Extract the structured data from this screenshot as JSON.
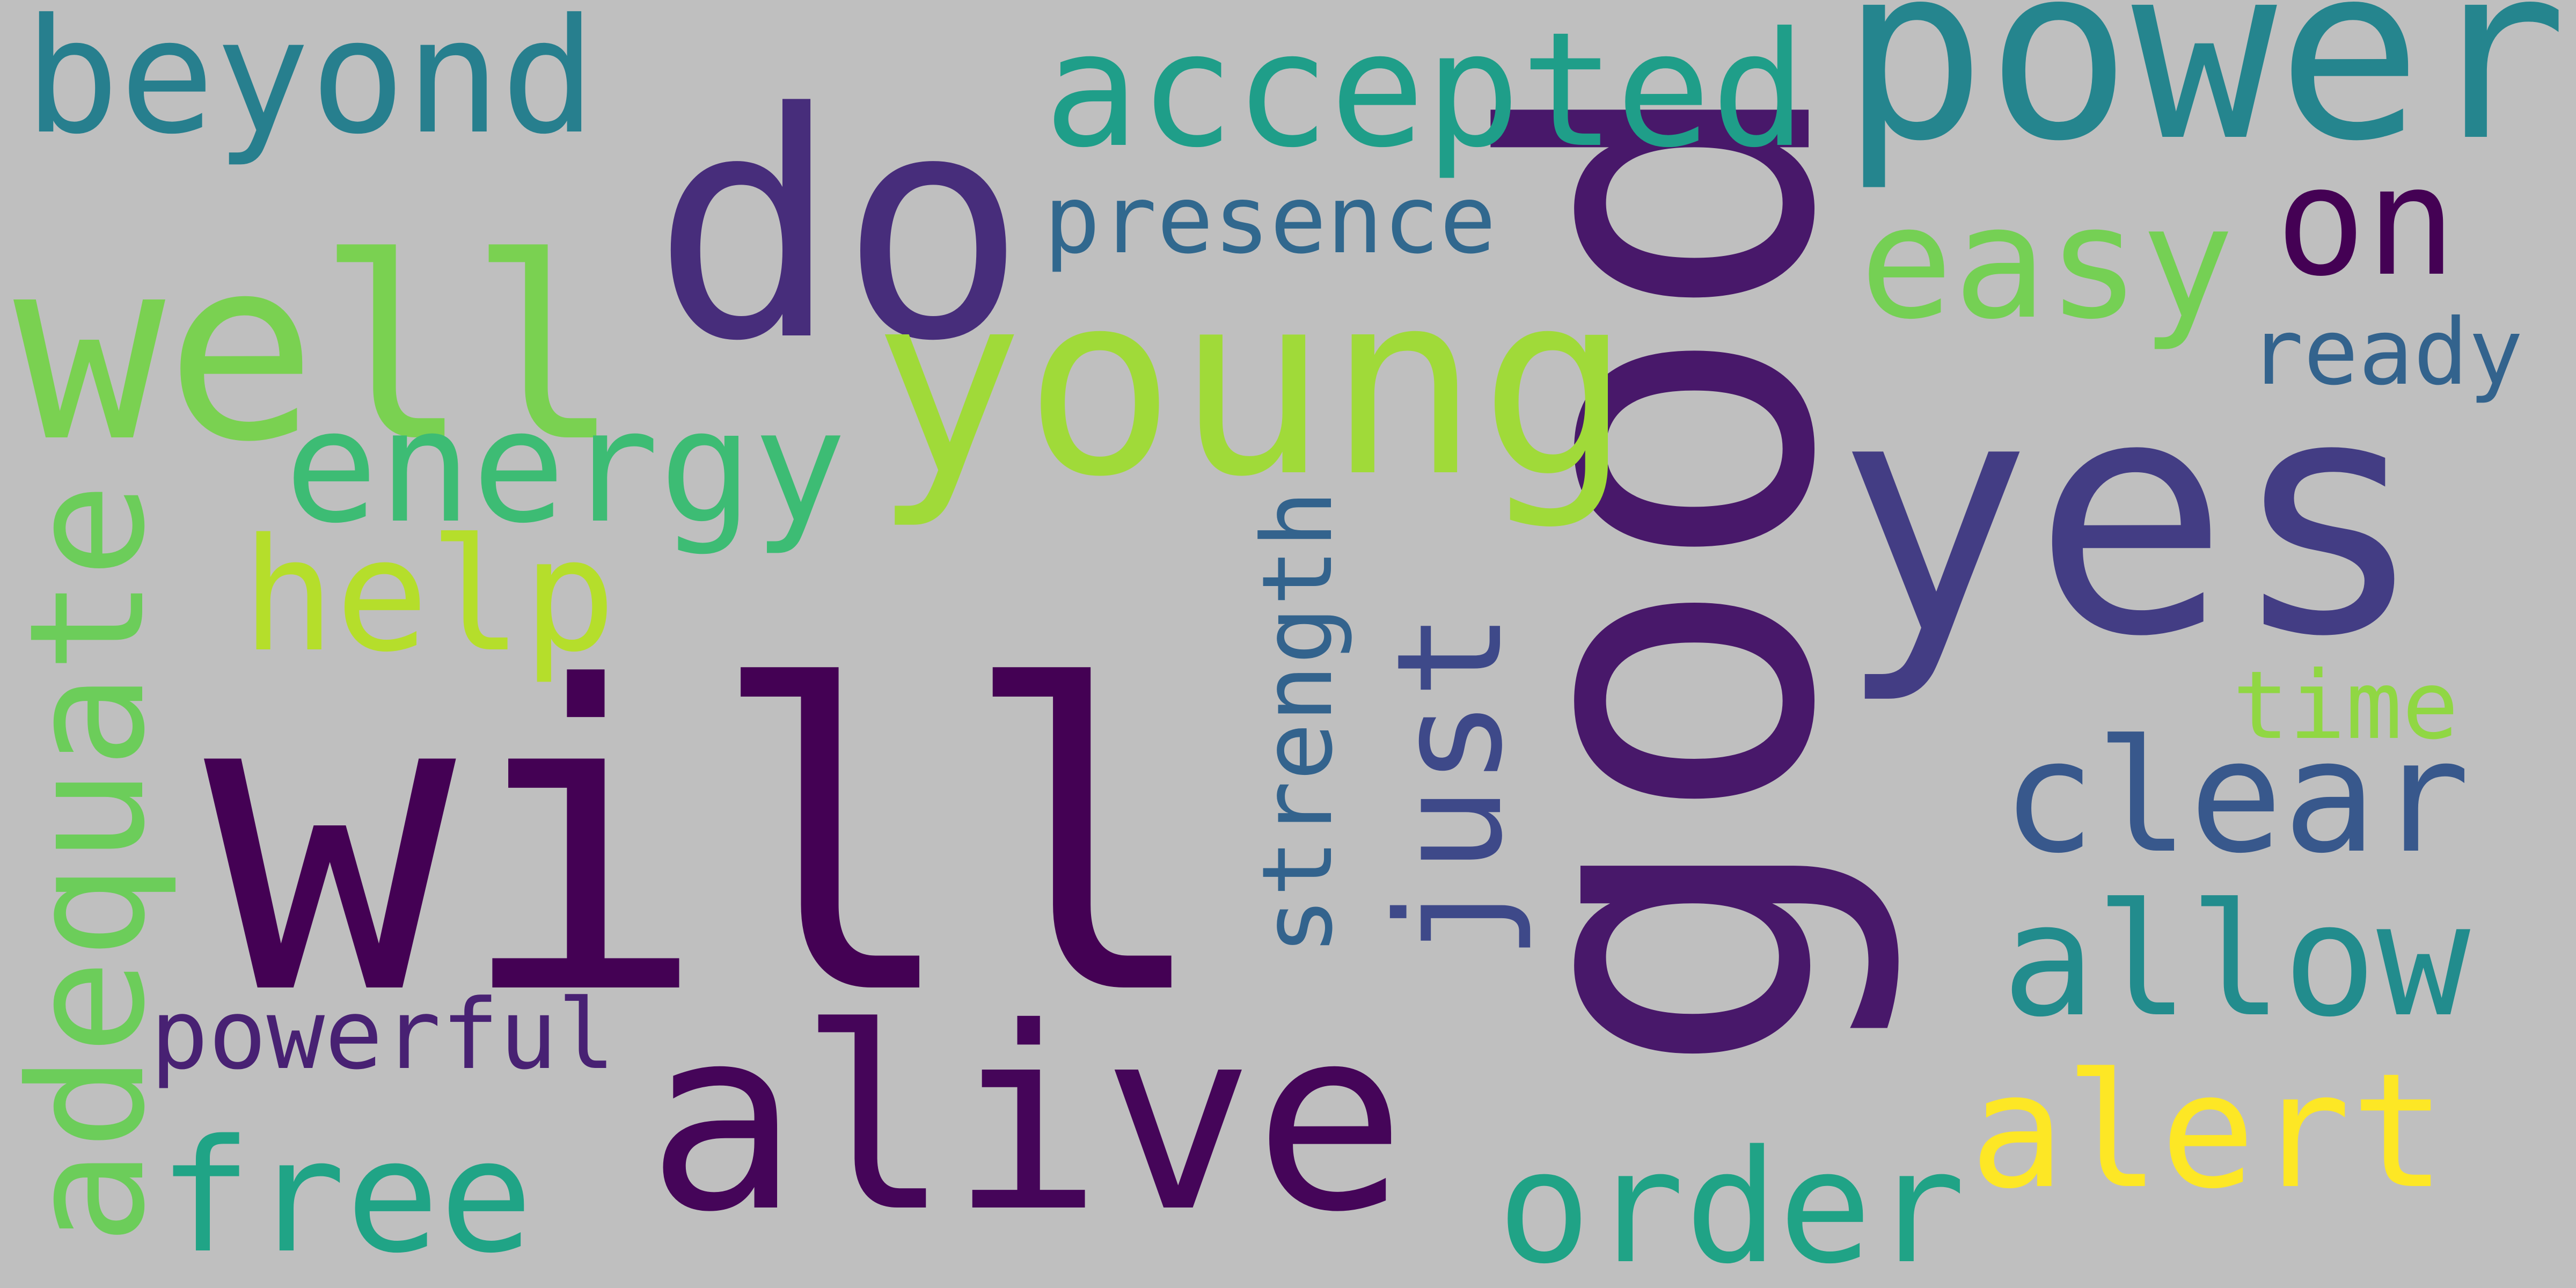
{
  "background_color": "#bfbfbf",
  "words": [
    {
      "text": "will",
      "color": "#440154"
    },
    {
      "text": "good",
      "color": "#48186a"
    },
    {
      "text": "power",
      "color": "#25858e"
    },
    {
      "text": "yes",
      "color": "#433d84"
    },
    {
      "text": "do",
      "color": "#472d7b"
    },
    {
      "text": "young",
      "color": "#a0da39"
    },
    {
      "text": "well",
      "color": "#7ad151"
    },
    {
      "text": "alive",
      "color": "#450559"
    },
    {
      "text": "accepted",
      "color": "#1f9e89"
    },
    {
      "text": "beyond",
      "color": "#277f8e"
    },
    {
      "text": "easy",
      "color": "#75d054"
    },
    {
      "text": "energy",
      "color": "#3dbc74"
    },
    {
      "text": "adequate",
      "color": "#6ccd5a"
    },
    {
      "text": "help",
      "color": "#b5de2b"
    },
    {
      "text": "on",
      "color": "#440154"
    },
    {
      "text": "presence",
      "color": "#31688e"
    },
    {
      "text": "ready",
      "color": "#33638d"
    },
    {
      "text": "just",
      "color": "#3e4989"
    },
    {
      "text": "strength",
      "color": "#33638d"
    },
    {
      "text": "clear",
      "color": "#38588c"
    },
    {
      "text": "time",
      "color": "#90d743"
    },
    {
      "text": "allow",
      "color": "#228c8d"
    },
    {
      "text": "alert",
      "color": "#fde725"
    },
    {
      "text": "order",
      "color": "#20a386"
    },
    {
      "text": "free",
      "color": "#20a486"
    },
    {
      "text": "powerful",
      "color": "#482173"
    }
  ]
}
